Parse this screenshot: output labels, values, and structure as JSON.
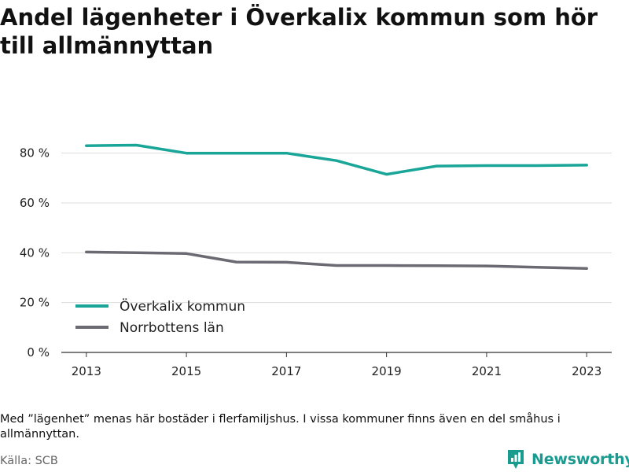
{
  "title": "Andel lägenheter i Överkalix kommun som hör till allmännyttan",
  "note": "Med ”lägenhet” menas här bostäder i flerfamiljshus. I vissa kommuner finns även en del småhus i allmännyttan.",
  "source": "Källa: SCB",
  "brand": "Newsworthy",
  "colors": {
    "accent": "#1aa599",
    "secondary": "#6b6a72",
    "grid": "#dddddd",
    "brand": "#1a9b90"
  },
  "icons": {
    "brand_logo": "newsworthy-logo-icon"
  },
  "chart_data": {
    "type": "line",
    "x": [
      2013,
      2014,
      2015,
      2016,
      2017,
      2018,
      2019,
      2020,
      2021,
      2022,
      2023
    ],
    "x_ticks": [
      "2013",
      "2015",
      "2017",
      "2019",
      "2021",
      "2023"
    ],
    "y_ticks": [
      "0 %",
      "20 %",
      "40 %",
      "60 %",
      "80 %"
    ],
    "y_tick_values": [
      0,
      20,
      40,
      60,
      80
    ],
    "ylim": [
      0,
      90
    ],
    "xlim": [
      2012.5,
      2023.5
    ],
    "grid": true,
    "legend_position": "bottom-left",
    "series": [
      {
        "name": "Överkalix kommun",
        "color": "#1aa599",
        "values": [
          83.0,
          83.2,
          80.0,
          80.0,
          80.0,
          77.0,
          71.5,
          74.8,
          75.0,
          75.0,
          75.2
        ]
      },
      {
        "name": "Norrbottens län",
        "color": "#6b6a72",
        "values": [
          40.3,
          40.0,
          39.7,
          36.3,
          36.2,
          34.9,
          34.9,
          34.8,
          34.7,
          34.2,
          33.7
        ]
      }
    ]
  }
}
